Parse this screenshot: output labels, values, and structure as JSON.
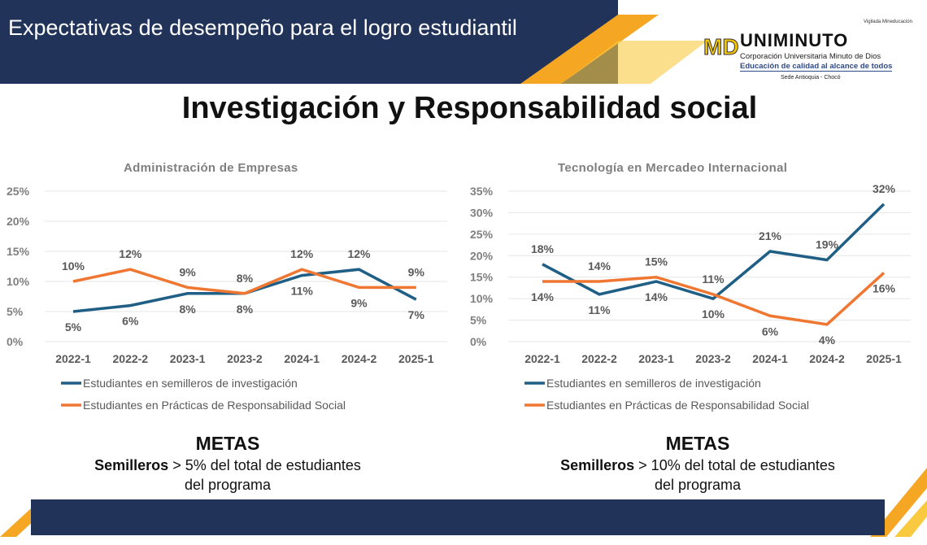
{
  "header": {
    "title": "Expectativas de desempeño para el logro estudiantil",
    "vigilada": "Vigilada Mineducación"
  },
  "logo": {
    "brand": "UNIMINUTO",
    "line1": "Corporación Universitaria Minuto de Dios",
    "line2": "Educación de calidad al alcance de todos",
    "line3": "Sede Antioquia - Chocó"
  },
  "page_title": "Investigación y Responsabilidad social",
  "colors": {
    "navy": "#22335a",
    "series1": "#1f5f86",
    "series2": "#ef7732",
    "accent": "#f5a623"
  },
  "chart_data": [
    {
      "type": "line",
      "title": "Administración de Empresas",
      "categories": [
        "2022-1",
        "2022-2",
        "2023-1",
        "2023-2",
        "2024-1",
        "2024-2",
        "2025-1"
      ],
      "ylim": [
        0,
        25
      ],
      "yticks": [
        "0%",
        "5%",
        "10%",
        "15%",
        "20%",
        "25%"
      ],
      "grid": true,
      "legend": "bottom",
      "series": [
        {
          "name": "Estudiantes en semilleros de investigación",
          "values": [
            5,
            6,
            8,
            8,
            11,
            12,
            7
          ]
        },
        {
          "name": "Estudiantes en Prácticas de Responsabilidad Social",
          "values": [
            10,
            12,
            9,
            8,
            12,
            9,
            9
          ]
        }
      ]
    },
    {
      "type": "line",
      "title": "Tecnología en Mercadeo Internacional",
      "categories": [
        "2022-1",
        "2022-2",
        "2023-1",
        "2023-2",
        "2024-1",
        "2024-2",
        "2025-1"
      ],
      "ylim": [
        0,
        35
      ],
      "yticks": [
        "0%",
        "5%",
        "10%",
        "15%",
        "20%",
        "25%",
        "30%",
        "35%"
      ],
      "grid": true,
      "legend": "bottom",
      "series": [
        {
          "name": "Estudiantes en semilleros de investigación",
          "values": [
            18,
            11,
            14,
            10,
            21,
            19,
            32
          ]
        },
        {
          "name": "Estudiantes en Prácticas de Responsabilidad Social",
          "values": [
            14,
            14,
            15,
            11,
            6,
            4,
            16
          ]
        }
      ]
    }
  ],
  "metas": [
    {
      "heading": "METAS",
      "bold": "Semilleros",
      "text": " > 5% del total de estudiantes",
      "text2": "del programa"
    },
    {
      "heading": "METAS",
      "bold": "Semilleros",
      "text": " > 10% del total de estudiantes",
      "text2": "del programa"
    }
  ]
}
